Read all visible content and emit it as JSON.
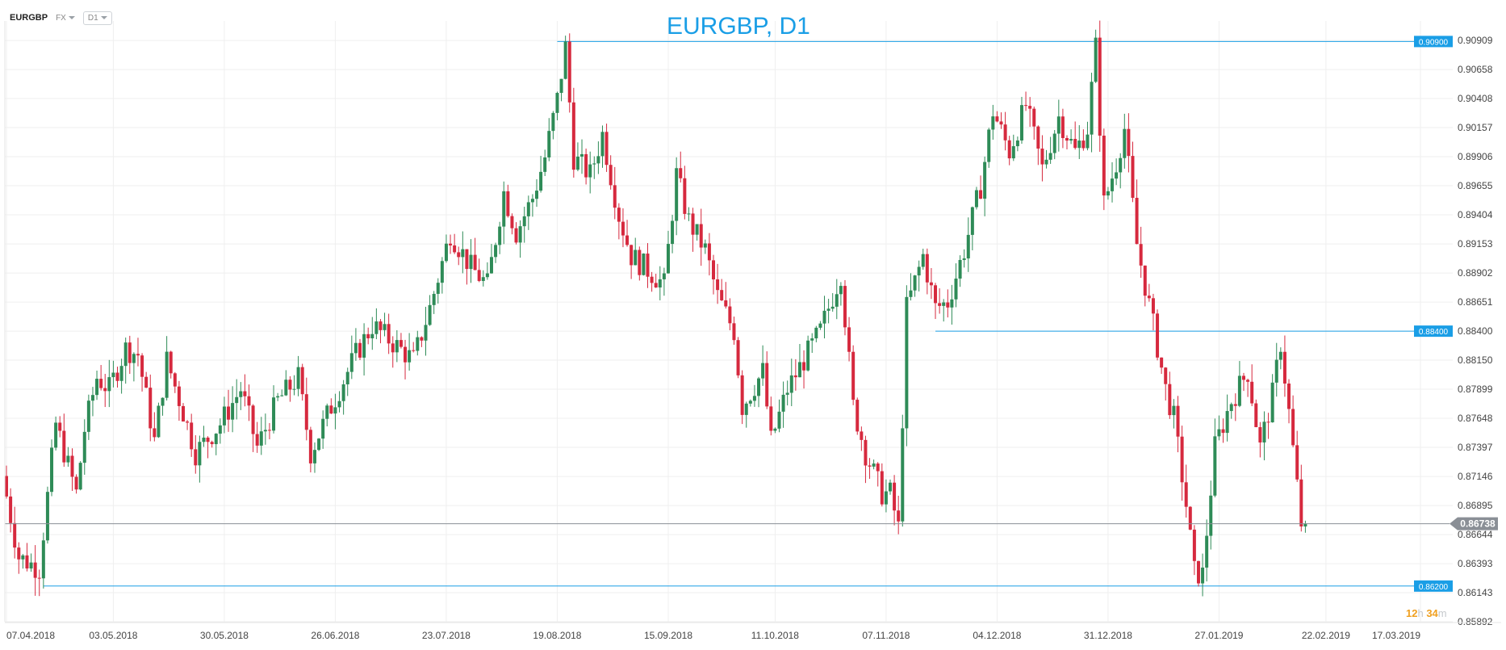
{
  "toolbar": {
    "symbol": "EURGBP",
    "market": "FX",
    "timeframe": "D1",
    "market_caret_icon": "chevron-down-icon",
    "timeframe_caret_icon": "chevron-down-icon"
  },
  "countdown": {
    "hours": "12",
    "hours_unit": "h",
    "minutes": "34",
    "minutes_unit": "m"
  },
  "colors": {
    "bull": "#2e8b57",
    "bear": "#d6293e",
    "line": "#1a9ee6",
    "price": "#8a8f96",
    "title": "#1a9ee6"
  },
  "chart_data": {
    "type": "candlestick",
    "title": "EURGBP, D1",
    "ylim": [
      0.85892,
      0.91077
    ],
    "y_ticks": [
      "0.90909",
      "0.90658",
      "0.90408",
      "0.90157",
      "0.89906",
      "0.89655",
      "0.89404",
      "0.89153",
      "0.88902",
      "0.88651",
      "0.88400",
      "0.88150",
      "0.87899",
      "0.87648",
      "0.87397",
      "0.87146",
      "0.86895",
      "0.86644",
      "0.86393",
      "0.86143",
      "0.85892"
    ],
    "x_ticks": [
      "07.04.2018",
      "03.05.2018",
      "30.05.2018",
      "26.06.2018",
      "23.07.2018",
      "19.08.2018",
      "15.09.2018",
      "11.10.2018",
      "07.11.2018",
      "04.12.2018",
      "31.12.2018",
      "27.01.2019",
      "22.02.2019",
      "17.03.2019"
    ],
    "current_price": "0.86738",
    "levels": [
      {
        "label": "0.90900",
        "value": 0.909,
        "start": "19.08.2018"
      },
      {
        "label": "0.88400",
        "value": 0.884,
        "start": "19.11.2018"
      },
      {
        "label": "0.86200",
        "value": 0.862,
        "start": "16.04.2018"
      }
    ],
    "anchors": [
      {
        "date": "07.04.2018",
        "close": 0.8715
      },
      {
        "date": "11.04.2018",
        "close": 0.8645
      },
      {
        "date": "16.04.2018",
        "close": 0.8635
      },
      {
        "date": "20.04.2018",
        "close": 0.876
      },
      {
        "date": "25.04.2018",
        "close": 0.87
      },
      {
        "date": "27.04.2018",
        "close": 0.8755
      },
      {
        "date": "30.04.2018",
        "close": 0.88
      },
      {
        "date": "03.05.2018",
        "close": 0.879
      },
      {
        "date": "07.05.2018",
        "close": 0.8825
      },
      {
        "date": "10.05.2018",
        "close": 0.882
      },
      {
        "date": "14.05.2018",
        "close": 0.8745
      },
      {
        "date": "17.05.2018",
        "close": 0.8815
      },
      {
        "date": "21.05.2018",
        "close": 0.877
      },
      {
        "date": "24.05.2018",
        "close": 0.8735
      },
      {
        "date": "30.05.2018",
        "close": 0.876
      },
      {
        "date": "04.06.2018",
        "close": 0.879
      },
      {
        "date": "08.06.2018",
        "close": 0.874
      },
      {
        "date": "13.06.2018",
        "close": 0.878
      },
      {
        "date": "18.06.2018",
        "close": 0.88
      },
      {
        "date": "21.06.2018",
        "close": 0.8735
      },
      {
        "date": "26.06.2018",
        "close": 0.8775
      },
      {
        "date": "02.07.2018",
        "close": 0.882
      },
      {
        "date": "06.07.2018",
        "close": 0.8845
      },
      {
        "date": "11.07.2018",
        "close": 0.883
      },
      {
        "date": "16.07.2018",
        "close": 0.8815
      },
      {
        "date": "20.07.2018",
        "close": 0.886
      },
      {
        "date": "25.07.2018",
        "close": 0.8925
      },
      {
        "date": "30.07.2018",
        "close": 0.8895
      },
      {
        "date": "03.08.2018",
        "close": 0.888
      },
      {
        "date": "07.08.2018",
        "close": 0.896
      },
      {
        "date": "10.08.2018",
        "close": 0.8925
      },
      {
        "date": "14.08.2018",
        "close": 0.8955
      },
      {
        "date": "17.08.2018",
        "close": 0.899
      },
      {
        "date": "20.08.2018",
        "close": 0.904
      },
      {
        "date": "22.08.2018",
        "close": 0.9085
      },
      {
        "date": "24.08.2018",
        "close": 0.899
      },
      {
        "date": "28.08.2018",
        "close": 0.8975
      },
      {
        "date": "31.08.2018",
        "close": 0.901
      },
      {
        "date": "04.09.2018",
        "close": 0.894
      },
      {
        "date": "07.09.2018",
        "close": 0.8905
      },
      {
        "date": "12.09.2018",
        "close": 0.889
      },
      {
        "date": "15.09.2018",
        "close": 0.888
      },
      {
        "date": "18.09.2018",
        "close": 0.8975
      },
      {
        "date": "21.09.2018",
        "close": 0.8935
      },
      {
        "date": "25.09.2018",
        "close": 0.891
      },
      {
        "date": "28.09.2018",
        "close": 0.887
      },
      {
        "date": "02.10.2018",
        "close": 0.884
      },
      {
        "date": "04.10.2018",
        "close": 0.8775
      },
      {
        "date": "09.10.2018",
        "close": 0.8805
      },
      {
        "date": "11.10.2018",
        "close": 0.8745
      },
      {
        "date": "15.10.2018",
        "close": 0.879
      },
      {
        "date": "19.10.2018",
        "close": 0.8815
      },
      {
        "date": "23.10.2018",
        "close": 0.884
      },
      {
        "date": "28.10.2018",
        "close": 0.889
      },
      {
        "date": "31.10.2018",
        "close": 0.8775
      },
      {
        "date": "03.11.2018",
        "close": 0.8735
      },
      {
        "date": "07.11.2018",
        "close": 0.87
      },
      {
        "date": "09.11.2018",
        "close": 0.87
      },
      {
        "date": "11.11.2018",
        "close": 0.867
      },
      {
        "date": "13.11.2018",
        "close": 0.886
      },
      {
        "date": "17.11.2018",
        "close": 0.8905
      },
      {
        "date": "20.11.2018",
        "close": 0.886
      },
      {
        "date": "23.11.2018",
        "close": 0.8865
      },
      {
        "date": "27.11.2018",
        "close": 0.891
      },
      {
        "date": "01.12.2018",
        "close": 0.8965
      },
      {
        "date": "04.12.2018",
        "close": 0.903
      },
      {
        "date": "08.12.2018",
        "close": 0.8995
      },
      {
        "date": "12.12.2018",
        "close": 0.9035
      },
      {
        "date": "16.12.2018",
        "close": 0.898
      },
      {
        "date": "20.12.2018",
        "close": 0.9025
      },
      {
        "date": "24.12.2018",
        "close": 0.8995
      },
      {
        "date": "27.12.2018",
        "close": 0.9015
      },
      {
        "date": "29.12.2018",
        "close": 0.9085
      },
      {
        "date": "31.12.2018",
        "close": 0.895
      },
      {
        "date": "03.01.2019",
        "close": 0.8985
      },
      {
        "date": "05.01.2019",
        "close": 0.9015
      },
      {
        "date": "08.01.2019",
        "close": 0.8915
      },
      {
        "date": "12.01.2019",
        "close": 0.8845
      },
      {
        "date": "15.01.2019",
        "close": 0.879
      },
      {
        "date": "17.01.2019",
        "close": 0.8765
      },
      {
        "date": "20.01.2019",
        "close": 0.869
      },
      {
        "date": "22.01.2019",
        "close": 0.8632
      },
      {
        "date": "24.01.2019",
        "close": 0.863
      },
      {
        "date": "27.01.2019",
        "close": 0.874
      },
      {
        "date": "31.01.2019",
        "close": 0.878
      },
      {
        "date": "04.02.2019",
        "close": 0.8805
      },
      {
        "date": "07.02.2019",
        "close": 0.874
      },
      {
        "date": "10.02.2019",
        "close": 0.8785
      },
      {
        "date": "12.02.2019",
        "close": 0.883
      },
      {
        "date": "14.02.2019",
        "close": 0.877
      },
      {
        "date": "17.02.2019",
        "close": 0.8674
      }
    ]
  }
}
